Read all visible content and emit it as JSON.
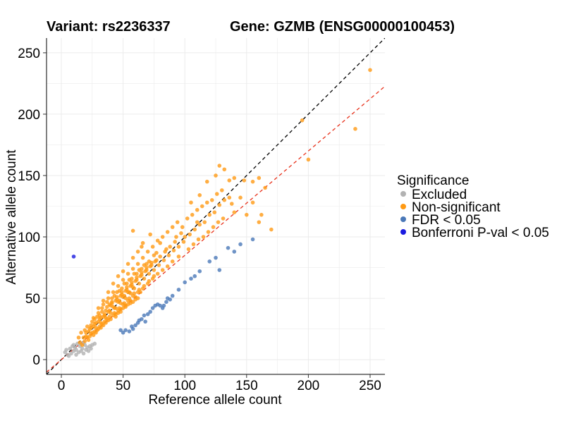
{
  "header": {
    "variant_label": "Variant: rs2236337",
    "gene_label": "Gene: GZMB (ENSG00000100453)"
  },
  "colors": {
    "excluded": "#b2b2b2",
    "non_significant": "#ff9a14",
    "fdr": "#4a78b8",
    "bonferroni": "#1a1ae0",
    "identity_line": "#000000",
    "fit_line": "#e8321c",
    "grid": "#ebebeb"
  },
  "chart_data": {
    "type": "scatter",
    "xlabel": "Reference allele count",
    "ylabel": "Alternative allele count",
    "xlim": [
      -12,
      262
    ],
    "ylim": [
      -12,
      262
    ],
    "xticks": [
      0,
      50,
      100,
      150,
      200,
      250
    ],
    "yticks": [
      0,
      50,
      100,
      150,
      200,
      250
    ],
    "grid": true,
    "legend": {
      "title": "Significance",
      "placement": "right",
      "entries": [
        "Excluded",
        "Non-significant",
        "FDR < 0.05",
        "Bonferroni P-val < 0.05"
      ]
    },
    "reference_lines": [
      {
        "name": "identity",
        "style": "dashed",
        "slope": 1.0,
        "intercept": 0
      },
      {
        "name": "fit",
        "style": "dashed",
        "slope": 0.85,
        "intercept": 0
      }
    ],
    "series": [
      {
        "name": "Excluded",
        "points": [
          [
            3,
            6
          ],
          [
            5,
            4
          ],
          [
            7,
            9
          ],
          [
            8,
            5
          ],
          [
            10,
            7
          ],
          [
            11,
            10
          ],
          [
            12,
            8
          ],
          [
            14,
            6
          ],
          [
            15,
            11
          ],
          [
            16,
            7
          ],
          [
            17,
            9
          ],
          [
            18,
            5
          ],
          [
            19,
            12
          ],
          [
            20,
            8
          ],
          [
            21,
            10
          ],
          [
            22,
            7
          ],
          [
            13,
            13
          ],
          [
            9,
            11
          ],
          [
            24,
            9
          ],
          [
            6,
            3
          ],
          [
            25,
            12
          ],
          [
            18,
            14
          ],
          [
            12,
            4
          ],
          [
            23,
            11
          ],
          [
            16,
            13
          ],
          [
            27,
            13
          ],
          [
            4,
            8
          ],
          [
            10,
            12
          ]
        ]
      },
      {
        "name": "Non-significant",
        "points": [
          [
            15,
            14
          ],
          [
            18,
            18
          ],
          [
            20,
            22
          ],
          [
            22,
            16
          ],
          [
            24,
            26
          ],
          [
            26,
            20
          ],
          [
            28,
            30
          ],
          [
            30,
            25
          ],
          [
            32,
            34
          ],
          [
            34,
            28
          ],
          [
            36,
            40
          ],
          [
            38,
            32
          ],
          [
            40,
            44
          ],
          [
            42,
            36
          ],
          [
            44,
            48
          ],
          [
            46,
            40
          ],
          [
            48,
            52
          ],
          [
            50,
            45
          ],
          [
            52,
            56
          ],
          [
            54,
            48
          ],
          [
            56,
            60
          ],
          [
            58,
            52
          ],
          [
            60,
            64
          ],
          [
            62,
            55
          ],
          [
            64,
            68
          ],
          [
            66,
            58
          ],
          [
            68,
            72
          ],
          [
            70,
            62
          ],
          [
            72,
            76
          ],
          [
            74,
            66
          ],
          [
            76,
            80
          ],
          [
            78,
            70
          ],
          [
            80,
            84
          ],
          [
            82,
            73
          ],
          [
            84,
            88
          ],
          [
            86,
            76
          ],
          [
            88,
            92
          ],
          [
            90,
            80
          ],
          [
            92,
            96
          ],
          [
            95,
            84
          ],
          [
            16,
            22
          ],
          [
            19,
            15
          ],
          [
            21,
            27
          ],
          [
            23,
            19
          ],
          [
            25,
            31
          ],
          [
            27,
            23
          ],
          [
            29,
            35
          ],
          [
            31,
            27
          ],
          [
            33,
            39
          ],
          [
            35,
            31
          ],
          [
            37,
            43
          ],
          [
            39,
            35
          ],
          [
            41,
            47
          ],
          [
            43,
            38
          ],
          [
            45,
            51
          ],
          [
            47,
            42
          ],
          [
            49,
            55
          ],
          [
            51,
            46
          ],
          [
            53,
            59
          ],
          [
            55,
            50
          ],
          [
            57,
            63
          ],
          [
            59,
            54
          ],
          [
            61,
            67
          ],
          [
            63,
            57
          ],
          [
            65,
            71
          ],
          [
            67,
            60
          ],
          [
            69,
            75
          ],
          [
            71,
            64
          ],
          [
            73,
            79
          ],
          [
            75,
            68
          ],
          [
            14,
            18
          ],
          [
            17,
            12
          ],
          [
            26,
            34
          ],
          [
            30,
            38
          ],
          [
            34,
            45
          ],
          [
            38,
            50
          ],
          [
            42,
            55
          ],
          [
            46,
            60
          ],
          [
            50,
            65
          ],
          [
            54,
            70
          ],
          [
            58,
            74
          ],
          [
            62,
            78
          ],
          [
            66,
            83
          ],
          [
            70,
            88
          ],
          [
            74,
            92
          ],
          [
            78,
            97
          ],
          [
            82,
            100
          ],
          [
            86,
            104
          ],
          [
            90,
            108
          ],
          [
            94,
            112
          ],
          [
            28,
            22
          ],
          [
            32,
            26
          ],
          [
            36,
            30
          ],
          [
            40,
            33
          ],
          [
            44,
            37
          ],
          [
            48,
            41
          ],
          [
            52,
            44
          ],
          [
            56,
            48
          ],
          [
            60,
            51
          ],
          [
            64,
            55
          ],
          [
            33,
            42
          ],
          [
            37,
            47
          ],
          [
            41,
            50
          ],
          [
            45,
            55
          ],
          [
            49,
            58
          ],
          [
            53,
            62
          ],
          [
            57,
            66
          ],
          [
            61,
            70
          ],
          [
            65,
            74
          ],
          [
            69,
            78
          ],
          [
            39,
            45
          ],
          [
            43,
            52
          ],
          [
            47,
            56
          ],
          [
            51,
            62
          ],
          [
            55,
            65
          ],
          [
            59,
            70
          ],
          [
            63,
            73
          ],
          [
            67,
            77
          ],
          [
            71,
            80
          ],
          [
            75,
            85
          ],
          [
            24,
            28
          ],
          [
            27,
            33
          ],
          [
            31,
            36
          ],
          [
            35,
            36
          ],
          [
            39,
            40
          ],
          [
            43,
            42
          ],
          [
            47,
            48
          ],
          [
            51,
            52
          ],
          [
            55,
            55
          ],
          [
            59,
            58
          ],
          [
            63,
            62
          ],
          [
            67,
            66
          ],
          [
            71,
            70
          ],
          [
            75,
            73
          ],
          [
            79,
            77
          ],
          [
            83,
            81
          ],
          [
            87,
            85
          ],
          [
            91,
            89
          ],
          [
            95,
            92
          ],
          [
            99,
            96
          ],
          [
            100,
            100
          ],
          [
            104,
            102
          ],
          [
            108,
            106
          ],
          [
            112,
            110
          ],
          [
            116,
            112
          ],
          [
            120,
            118
          ],
          [
            124,
            120
          ],
          [
            128,
            126
          ],
          [
            132,
            130
          ],
          [
            136,
            132
          ],
          [
            98,
            108
          ],
          [
            102,
            115
          ],
          [
            106,
            118
          ],
          [
            110,
            122
          ],
          [
            114,
            125
          ],
          [
            118,
            128
          ],
          [
            122,
            130
          ],
          [
            126,
            135
          ],
          [
            103,
            90
          ],
          [
            107,
            94
          ],
          [
            111,
            98
          ],
          [
            115,
            100
          ],
          [
            119,
            104
          ],
          [
            123,
            108
          ],
          [
            127,
            112
          ],
          [
            131,
            115
          ],
          [
            58,
            105
          ],
          [
            72,
            102
          ],
          [
            65,
            92
          ],
          [
            80,
            95
          ],
          [
            112,
            134
          ],
          [
            118,
            145
          ],
          [
            125,
            150
          ],
          [
            128,
            158
          ],
          [
            132,
            155
          ],
          [
            136,
            146
          ],
          [
            140,
            148
          ],
          [
            148,
            146
          ],
          [
            155,
            145
          ],
          [
            160,
            148
          ],
          [
            165,
            140
          ],
          [
            140,
            120
          ],
          [
            150,
            118
          ],
          [
            160,
            112
          ],
          [
            162,
            118
          ],
          [
            170,
            106
          ],
          [
            155,
            128
          ],
          [
            145,
            132
          ],
          [
            138,
            127
          ],
          [
            130,
            138
          ],
          [
            195,
            195
          ],
          [
            200,
            163
          ],
          [
            238,
            188
          ],
          [
            250,
            236
          ],
          [
            105,
            128
          ],
          [
            110,
            112
          ],
          [
            85,
            90
          ],
          [
            77,
            87
          ],
          [
            93,
            100
          ],
          [
            97,
            103
          ],
          [
            20,
            19
          ],
          [
            22,
            23
          ],
          [
            24,
            21
          ],
          [
            26,
            27
          ],
          [
            28,
            26
          ],
          [
            30,
            31
          ],
          [
            32,
            30
          ],
          [
            34,
            35
          ],
          [
            36,
            34
          ],
          [
            38,
            39
          ],
          [
            40,
            38
          ],
          [
            42,
            43
          ],
          [
            44,
            42
          ],
          [
            46,
            47
          ],
          [
            48,
            46
          ],
          [
            50,
            51
          ],
          [
            52,
            50
          ],
          [
            54,
            55
          ],
          [
            56,
            54
          ],
          [
            58,
            59
          ],
          [
            19,
            24
          ],
          [
            21,
            18
          ],
          [
            23,
            25
          ],
          [
            25,
            22
          ],
          [
            27,
            29
          ],
          [
            29,
            24
          ],
          [
            31,
            33
          ],
          [
            33,
            29
          ],
          [
            35,
            37
          ],
          [
            37,
            33
          ],
          [
            41,
            46
          ],
          [
            45,
            49
          ],
          [
            49,
            53
          ],
          [
            53,
            57
          ],
          [
            57,
            61
          ],
          [
            61,
            65
          ],
          [
            65,
            69
          ],
          [
            69,
            73
          ],
          [
            73,
            77
          ],
          [
            77,
            81
          ],
          [
            44,
            35
          ],
          [
            46,
            38
          ],
          [
            48,
            39
          ],
          [
            50,
            42
          ],
          [
            52,
            43
          ],
          [
            54,
            45
          ],
          [
            56,
            46
          ],
          [
            58,
            47
          ],
          [
            60,
            49
          ],
          [
            62,
            50
          ],
          [
            30,
            42
          ],
          [
            34,
            48
          ],
          [
            38,
            55
          ],
          [
            42,
            62
          ],
          [
            46,
            68
          ],
          [
            50,
            72
          ],
          [
            54,
            78
          ],
          [
            58,
            83
          ],
          [
            62,
            88
          ],
          [
            66,
            95
          ]
        ]
      },
      {
        "name": "FDR < 0.05",
        "points": [
          [
            48,
            24
          ],
          [
            50,
            22
          ],
          [
            52,
            24
          ],
          [
            55,
            23
          ],
          [
            57,
            27
          ],
          [
            60,
            28
          ],
          [
            62,
            30
          ],
          [
            63,
            32
          ],
          [
            65,
            33
          ],
          [
            67,
            36
          ],
          [
            70,
            37
          ],
          [
            72,
            39
          ],
          [
            74,
            42
          ],
          [
            76,
            44
          ],
          [
            78,
            45
          ],
          [
            80,
            44
          ],
          [
            82,
            42
          ],
          [
            85,
            47
          ],
          [
            88,
            49
          ],
          [
            90,
            52
          ],
          [
            95,
            57
          ],
          [
            100,
            63
          ],
          [
            105,
            66
          ],
          [
            108,
            68
          ],
          [
            112,
            72
          ],
          [
            120,
            80
          ],
          [
            125,
            83
          ],
          [
            128,
            73
          ],
          [
            135,
            91
          ],
          [
            140,
            88
          ],
          [
            145,
            94
          ],
          [
            155,
            98
          ],
          [
            58,
            25
          ],
          [
            68,
            31
          ],
          [
            83,
            44
          ],
          [
            86,
            50
          ]
        ]
      },
      {
        "name": "Bonferroni P-val < 0.05",
        "points": [
          [
            10,
            84
          ]
        ]
      }
    ]
  }
}
